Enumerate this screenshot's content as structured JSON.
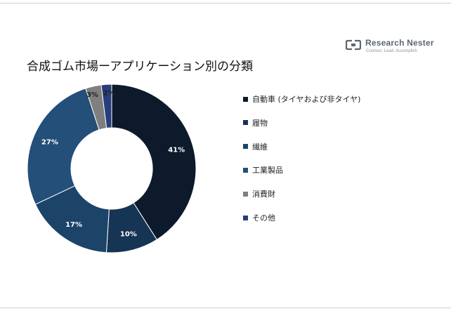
{
  "logo": {
    "name": "Research Nester",
    "tagline": "Connect. Lead. Accomplish"
  },
  "chart_data": {
    "type": "pie",
    "title": "合成ゴム市場ーアプリケーション別の分類",
    "donut": true,
    "legend_position": "right",
    "slices": [
      {
        "name": "自動車 (タイヤおよび非タイヤ)",
        "value": 41,
        "label": "41%",
        "color": "#0c1a2b",
        "label_color": "#ffffff"
      },
      {
        "name": "履物",
        "value": 10,
        "label": "10%",
        "color": "#163453",
        "label_color": "#ffffff"
      },
      {
        "name": "繊維",
        "value": 17,
        "label": "17%",
        "color": "#1c4469",
        "label_color": "#ffffff"
      },
      {
        "name": "工業製品",
        "value": 27,
        "label": "27%",
        "color": "#234f79",
        "label_color": "#ffffff"
      },
      {
        "name": "消費財",
        "value": 3,
        "label": "3%",
        "color": "#7f7f7f",
        "label_color": "#222222"
      },
      {
        "name": "その他",
        "value": 2,
        "label": "2%",
        "color": "#283d7a",
        "label_color": "#222222"
      }
    ]
  }
}
